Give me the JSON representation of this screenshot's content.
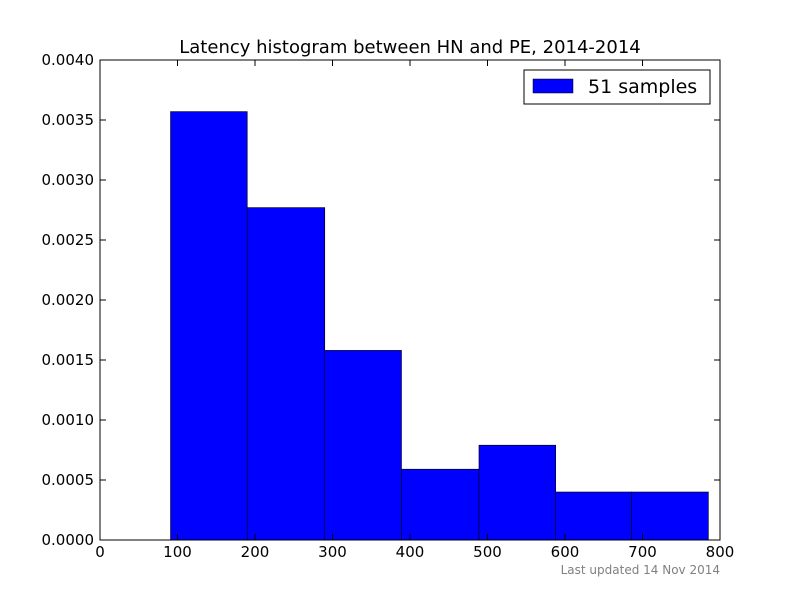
{
  "chart_data": {
    "type": "bar",
    "title": "Latency histogram between HN and PE, 2014-2014",
    "xlabel": "",
    "ylabel": "",
    "bins": [
      {
        "start": 91,
        "end": 190,
        "value": 0.00357
      },
      {
        "start": 190,
        "end": 290,
        "value": 0.00277
      },
      {
        "start": 290,
        "end": 389,
        "value": 0.00158
      },
      {
        "start": 389,
        "end": 489,
        "value": 0.00059
      },
      {
        "start": 489,
        "end": 588,
        "value": 0.00079
      },
      {
        "start": 588,
        "end": 686,
        "value": 0.0004
      },
      {
        "start": 686,
        "end": 785,
        "value": 0.0004
      }
    ],
    "xlim": [
      0,
      800
    ],
    "ylim": [
      0,
      0.004
    ],
    "xticks": [
      "0",
      "100",
      "200",
      "300",
      "400",
      "500",
      "600",
      "700",
      "800"
    ],
    "yticks": [
      "0.0000",
      "0.0005",
      "0.0010",
      "0.0015",
      "0.0020",
      "0.0025",
      "0.0030",
      "0.0035",
      "0.0040"
    ],
    "grid": false,
    "legend": {
      "position": "top-right",
      "label": "51 samples",
      "color": "#0000ff"
    },
    "bar_color": "#0000ff"
  },
  "footer": {
    "updated": "Last updated 14 Nov 2014"
  }
}
